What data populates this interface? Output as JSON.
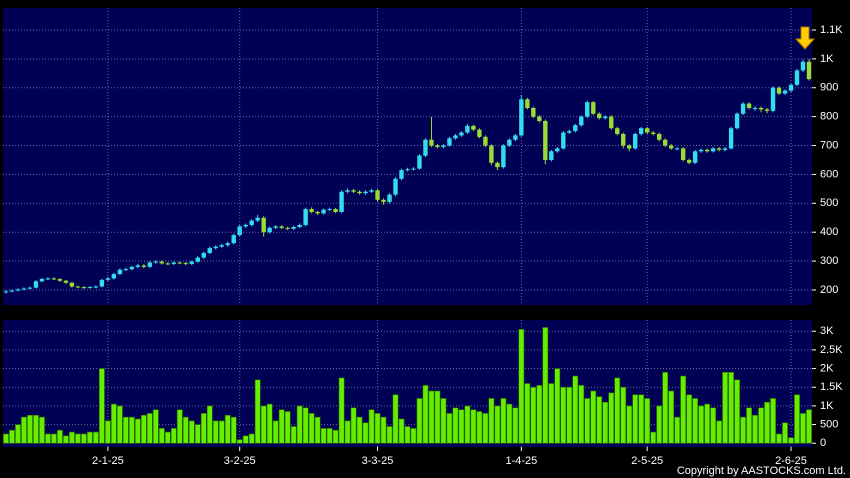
{
  "chart_data": [
    {
      "type": "candlestick",
      "open": [
        192,
        195,
        198,
        202,
        205,
        208,
        230,
        238,
        240,
        238,
        232,
        225,
        212,
        210,
        208,
        210,
        212,
        235,
        240,
        255,
        270,
        272,
        280,
        285,
        280,
        295,
        298,
        292,
        290,
        295,
        293,
        290,
        298,
        312,
        328,
        345,
        350,
        355,
        362,
        390,
        420,
        425,
        440,
        450,
        400,
        415,
        420,
        415,
        412,
        418,
        425,
        480,
        470,
        465,
        478,
        480,
        470,
        540,
        545,
        540,
        535,
        540,
        545,
        512,
        505,
        530,
        585,
        615,
        618,
        620,
        665,
        720,
        700,
        695,
        700,
        725,
        735,
        745,
        768,
        755,
        730,
        700,
        640,
        625,
        700,
        720,
        735,
        860,
        830,
        800,
        785,
        650,
        680,
        690,
        745,
        750,
        770,
        800,
        850,
        810,
        795,
        800,
        760,
        740,
        700,
        690,
        740,
        760,
        745,
        740,
        720,
        700,
        690,
        690,
        650,
        640,
        680,
        685,
        680,
        690,
        685,
        690,
        760,
        810,
        845,
        830,
        830,
        825,
        820,
        900,
        880,
        890,
        910,
        960,
        990
      ],
      "high": [
        200,
        202,
        206,
        209,
        212,
        234,
        242,
        244,
        244,
        241,
        235,
        228,
        215,
        213,
        214,
        216,
        239,
        245,
        260,
        275,
        277,
        284,
        290,
        289,
        300,
        303,
        302,
        296,
        299,
        299,
        297,
        302,
        317,
        333,
        350,
        355,
        360,
        367,
        395,
        425,
        430,
        445,
        460,
        455,
        420,
        425,
        424,
        419,
        422,
        430,
        485,
        486,
        474,
        482,
        485,
        484,
        545,
        552,
        550,
        545,
        545,
        550,
        549,
        517,
        535,
        590,
        620,
        623,
        625,
        670,
        725,
        800,
        705,
        705,
        730,
        740,
        750,
        775,
        772,
        760,
        735,
        704,
        645,
        705,
        725,
        740,
        875,
        865,
        835,
        805,
        790,
        685,
        695,
        750,
        755,
        775,
        805,
        855,
        854,
        815,
        805,
        805,
        765,
        745,
        705,
        745,
        765,
        764,
        750,
        745,
        725,
        705,
        695,
        694,
        655,
        685,
        690,
        690,
        695,
        694,
        695,
        765,
        815,
        850,
        850,
        836,
        835,
        830,
        905,
        905,
        895,
        915,
        965,
        998,
        1000
      ],
      "low": [
        188,
        192,
        195,
        199,
        202,
        205,
        227,
        235,
        234,
        228,
        221,
        208,
        206,
        204,
        205,
        206,
        209,
        231,
        236,
        251,
        266,
        268,
        276,
        275,
        276,
        291,
        288,
        286,
        286,
        289,
        286,
        286,
        294,
        308,
        324,
        340,
        346,
        350,
        358,
        386,
        415,
        420,
        435,
        385,
        395,
        410,
        410,
        407,
        408,
        414,
        420,
        465,
        460,
        461,
        474,
        466,
        466,
        535,
        535,
        530,
        530,
        536,
        505,
        495,
        500,
        525,
        580,
        610,
        614,
        616,
        660,
        695,
        690,
        690,
        696,
        720,
        730,
        740,
        750,
        725,
        695,
        632,
        615,
        620,
        695,
        715,
        730,
        825,
        795,
        780,
        635,
        645,
        675,
        686,
        740,
        745,
        765,
        795,
        805,
        790,
        790,
        755,
        735,
        690,
        680,
        685,
        735,
        740,
        735,
        715,
        695,
        685,
        684,
        645,
        635,
        636,
        675,
        675,
        676,
        680,
        680,
        686,
        755,
        805,
        825,
        820,
        815,
        812,
        815,
        875,
        875,
        885,
        905,
        955,
        925
      ],
      "close": [
        195,
        198,
        202,
        205,
        208,
        230,
        238,
        240,
        238,
        232,
        225,
        212,
        210,
        208,
        210,
        212,
        235,
        240,
        255,
        270,
        272,
        280,
        285,
        280,
        295,
        298,
        292,
        290,
        295,
        293,
        290,
        298,
        312,
        328,
        345,
        350,
        355,
        362,
        390,
        420,
        425,
        440,
        450,
        400,
        415,
        420,
        415,
        412,
        418,
        425,
        480,
        470,
        465,
        478,
        480,
        470,
        540,
        545,
        540,
        535,
        540,
        545,
        512,
        505,
        530,
        585,
        615,
        618,
        620,
        665,
        720,
        700,
        695,
        700,
        725,
        735,
        745,
        768,
        755,
        730,
        700,
        640,
        625,
        700,
        720,
        735,
        860,
        830,
        800,
        785,
        650,
        680,
        690,
        745,
        750,
        770,
        800,
        850,
        810,
        795,
        800,
        760,
        740,
        700,
        690,
        740,
        760,
        745,
        740,
        720,
        700,
        690,
        690,
        650,
        640,
        680,
        685,
        680,
        690,
        685,
        690,
        760,
        810,
        845,
        830,
        830,
        825,
        820,
        900,
        880,
        890,
        910,
        960,
        990,
        930
      ],
      "up_color": "#33ddee",
      "down_color": "#99dd33",
      "ylim": [
        148,
        1176
      ],
      "yticks": [
        200,
        300,
        400,
        500,
        600,
        700,
        800,
        900,
        {
          "value": 1000,
          "label": "1K"
        },
        {
          "value": 1100,
          "label": "1.1K"
        }
      ],
      "grid": true
    },
    {
      "type": "bar",
      "categories": [
        null,
        null,
        null,
        null,
        null,
        null,
        null,
        null,
        null,
        null,
        null,
        null,
        null,
        null,
        null,
        null,
        null,
        "2-1-25",
        null,
        null,
        null,
        null,
        null,
        null,
        null,
        null,
        null,
        null,
        null,
        null,
        null,
        null,
        null,
        null,
        null,
        null,
        null,
        null,
        null,
        "3-2-25",
        null,
        null,
        null,
        null,
        null,
        null,
        null,
        null,
        null,
        null,
        null,
        null,
        null,
        null,
        null,
        null,
        null,
        null,
        null,
        null,
        null,
        null,
        "3-3-25",
        null,
        null,
        null,
        null,
        null,
        null,
        null,
        null,
        null,
        null,
        null,
        null,
        null,
        null,
        null,
        null,
        null,
        null,
        null,
        null,
        null,
        null,
        null,
        "1-4-25",
        null,
        null,
        null,
        null,
        null,
        null,
        null,
        null,
        null,
        null,
        null,
        null,
        null,
        null,
        null,
        null,
        null,
        null,
        null,
        null,
        "2-5-25",
        null,
        null,
        null,
        null,
        null,
        null,
        null,
        null,
        null,
        null,
        null,
        null,
        null,
        null,
        null,
        null,
        null,
        null,
        null,
        null,
        null,
        null,
        null,
        "2-6-25",
        null,
        null,
        null
      ],
      "values": [
        250,
        350,
        500,
        700,
        750,
        750,
        700,
        250,
        250,
        350,
        200,
        300,
        250,
        250,
        300,
        300,
        2000,
        600,
        1050,
        1000,
        700,
        700,
        650,
        750,
        800,
        900,
        400,
        300,
        400,
        900,
        700,
        600,
        500,
        800,
        1000,
        600,
        600,
        750,
        700,
        100,
        200,
        250,
        1700,
        1000,
        1050,
        600,
        900,
        850,
        450,
        1000,
        950,
        800,
        700,
        400,
        400,
        350,
        1750,
        600,
        950,
        700,
        550,
        900,
        800,
        700,
        450,
        1300,
        650,
        450,
        400,
        1200,
        1550,
        1400,
        1400,
        1200,
        800,
        950,
        900,
        1000,
        900,
        850,
        800,
        1200,
        1000,
        1200,
        1050,
        950,
        3050,
        1600,
        1500,
        1550,
        3100,
        1600,
        2000,
        1500,
        1500,
        1800,
        1550,
        1200,
        1400,
        1250,
        1100,
        1350,
        1750,
        1500,
        1000,
        1300,
        1300,
        1200,
        300,
        1000,
        1900,
        1400,
        700,
        1800,
        1300,
        1200,
        1000,
        1050,
        950,
        600,
        1900,
        1900,
        1700,
        700,
        950,
        750,
        950,
        1100,
        1200,
        250,
        550,
        150,
        1300,
        800,
        900
      ],
      "color": "#66ee00",
      "ylim": [
        -100,
        3300
      ],
      "yticks": [
        0,
        500,
        {
          "value": 1000,
          "label": "1K"
        },
        {
          "value": 1500,
          "label": "1.5K"
        },
        {
          "value": 2000,
          "label": "2K"
        },
        {
          "value": 2500,
          "label": "2.5K"
        },
        {
          "value": 3000,
          "label": "3K"
        }
      ],
      "grid": true
    }
  ],
  "footer": {
    "copyright": "Copyright by AASTOCKS.com Ltd."
  }
}
